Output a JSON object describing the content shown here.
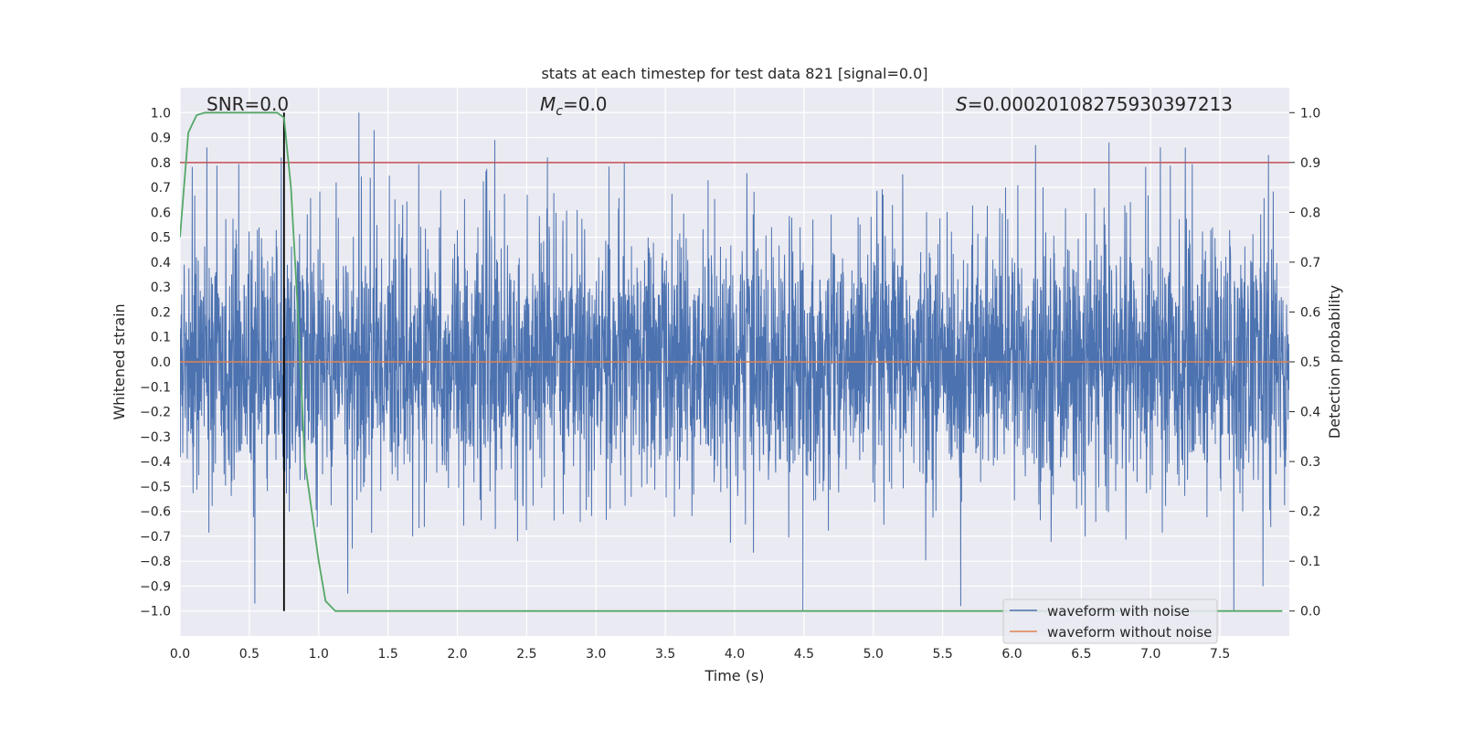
{
  "chart_data": {
    "type": "line",
    "title": "stats at each timestep for test data 821 [signal=0.0]",
    "xlabel": "Time (s)",
    "ylabel": "Whitened strain",
    "y2label": "Detection probability",
    "xlim": [
      0.0,
      8.0
    ],
    "ylim": [
      -1.1,
      1.1
    ],
    "y2lim": [
      -0.05,
      1.05
    ],
    "x_ticks": [
      "0.0",
      "0.5",
      "1.0",
      "1.5",
      "2.0",
      "2.5",
      "3.0",
      "3.5",
      "4.0",
      "4.5",
      "5.0",
      "5.5",
      "6.0",
      "6.5",
      "7.0",
      "7.5"
    ],
    "y_ticks": [
      "1.0",
      "0.9",
      "0.8",
      "0.7",
      "0.6",
      "0.5",
      "0.4",
      "0.3",
      "0.2",
      "0.1",
      "0.0",
      "−0.1",
      "−0.2",
      "−0.3",
      "−0.4",
      "−0.5",
      "−0.6",
      "−0.7",
      "−0.8",
      "−0.9",
      "−1.0"
    ],
    "y2_ticks": [
      "1.0",
      "0.9",
      "0.8",
      "0.7",
      "0.6",
      "0.5",
      "0.4",
      "0.3",
      "0.2",
      "0.1",
      "0.0"
    ],
    "annotations": {
      "snr": "SNR=0.0",
      "mc_symbol": "M",
      "mc_sub": "c",
      "mc_value": "=0.0",
      "s_symbol": "S",
      "s_value": "=0.00020108275930397213"
    },
    "threshold": {
      "value": 0.9,
      "axis": "right",
      "color": "#c44e52"
    },
    "marker_line": {
      "x": 0.75,
      "color": "#000000"
    },
    "series": [
      {
        "name": "waveform with noise",
        "color": "#4c72b0",
        "kind": "noise",
        "sample_rate_hz": 2048,
        "amplitude_range": [
          -1.0,
          1.0
        ],
        "peak_spikes": [
          [
            0.54,
            -0.97
          ],
          [
            0.73,
            0.82
          ],
          [
            1.21,
            -0.93
          ],
          [
            1.29,
            1.0
          ],
          [
            1.4,
            0.93
          ],
          [
            2.27,
            0.89
          ],
          [
            2.65,
            0.82
          ],
          [
            5.63,
            -0.98
          ],
          [
            6.17,
            0.87
          ],
          [
            6.7,
            0.88
          ],
          [
            7.25,
            0.86
          ],
          [
            7.6,
            -1.0
          ],
          [
            7.85,
            0.83
          ],
          [
            7.81,
            -0.9
          ]
        ]
      },
      {
        "name": "waveform without noise",
        "color": "#dd8452",
        "x": [
          0.0,
          8.0
        ],
        "y": [
          0.0,
          0.0
        ]
      },
      {
        "name": "detection probability",
        "color": "#55a868",
        "axis": "right",
        "x": [
          0.0,
          0.06,
          0.12,
          0.18,
          0.3,
          0.5,
          0.7,
          0.75,
          0.8,
          0.85,
          0.9,
          0.95,
          1.0,
          1.05,
          1.12,
          1.2,
          3.0,
          7.95
        ],
        "y": [
          0.75,
          0.96,
          0.995,
          1.0,
          1.0,
          1.0,
          1.0,
          0.99,
          0.85,
          0.6,
          0.3,
          0.2,
          0.1,
          0.02,
          0.0,
          0.0,
          0.0,
          0.0
        ]
      }
    ],
    "legend": {
      "position": "lower-right",
      "entries": [
        {
          "label": "waveform with noise",
          "color": "#4c72b0"
        },
        {
          "label": "waveform without noise",
          "color": "#dd8452"
        }
      ]
    }
  }
}
